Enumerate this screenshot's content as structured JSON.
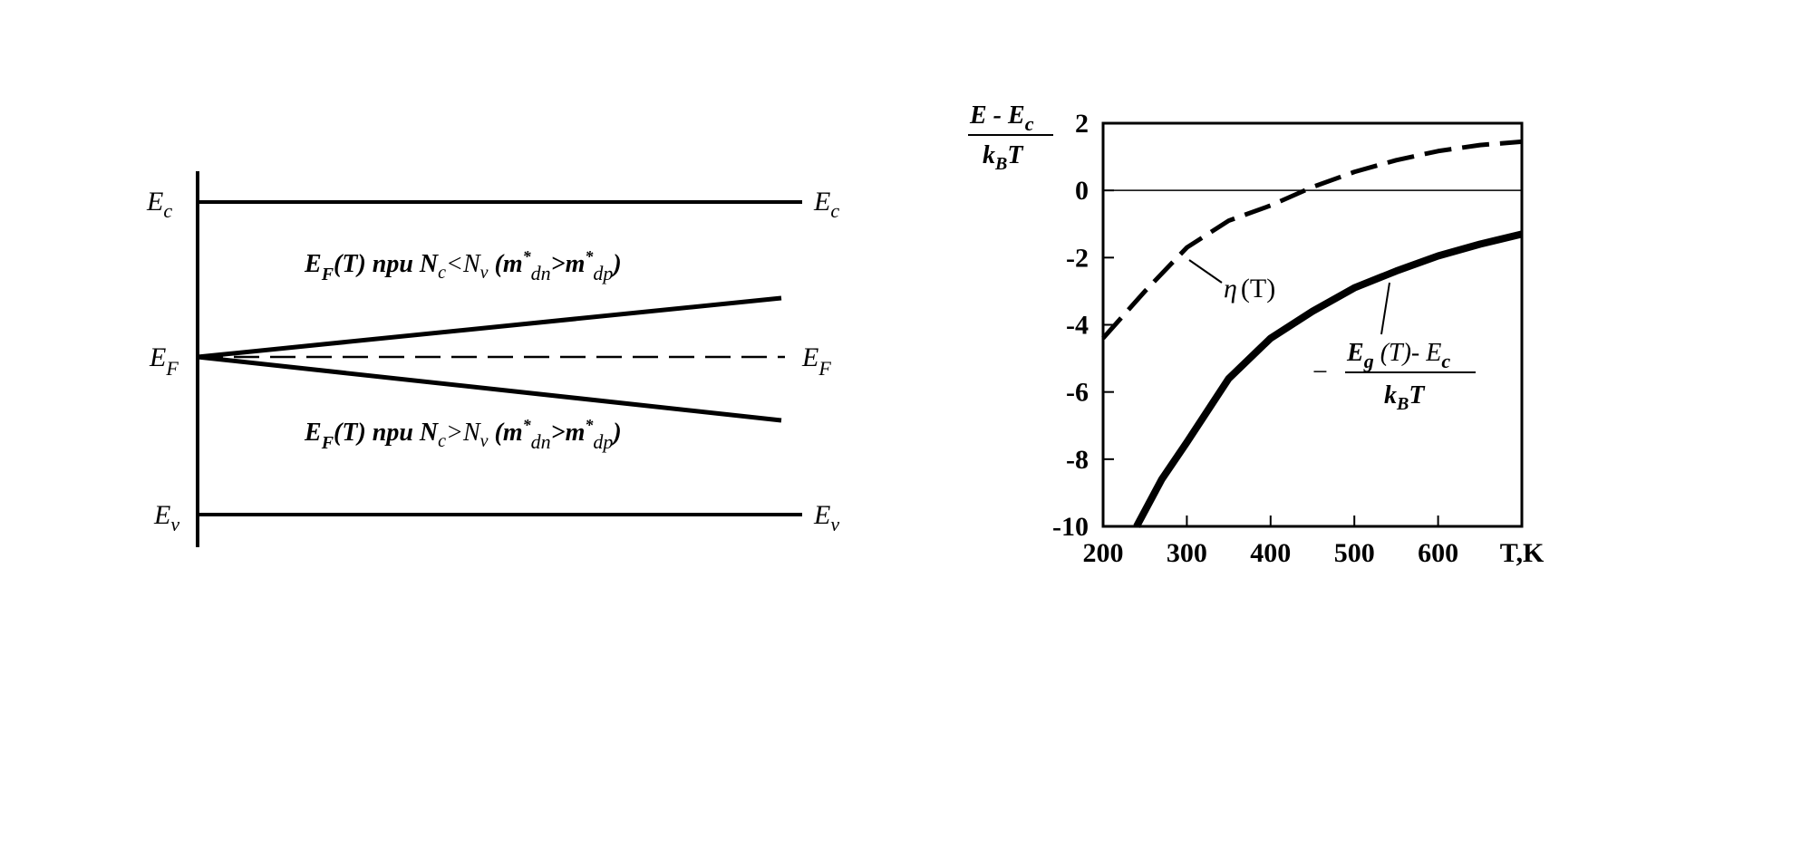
{
  "diagram": {
    "ec_left": [
      "E",
      "c"
    ],
    "ec_right": [
      "E",
      "c"
    ],
    "ef_left": [
      "E",
      "F"
    ],
    "ef_right": [
      "E",
      "F"
    ],
    "ev_left": [
      "E",
      "v"
    ],
    "ev_right": [
      "E",
      "v"
    ],
    "upper_label": [
      "E",
      "F",
      "(T) при N",
      "c",
      "<N",
      "v",
      " (",
      "m",
      "*",
      "dn",
      ">",
      "m",
      "*",
      "dp",
      ")"
    ],
    "lower_label": [
      "E",
      "F",
      "(T) при N",
      "c",
      ">N",
      "v",
      " (",
      "m",
      "*",
      "dn",
      ">",
      "m",
      "*",
      "dp",
      ")"
    ]
  },
  "chart_data": {
    "type": "line",
    "y_label": {
      "numerator": [
        "E - E",
        "c"
      ],
      "denominator": [
        "k",
        "B",
        "T"
      ]
    },
    "x_label": "T,K",
    "xlim": [
      200,
      700
    ],
    "ylim": [
      -10,
      2
    ],
    "xticks": [
      200,
      300,
      400,
      500,
      600
    ],
    "yticks": [
      2,
      0,
      -2,
      -4,
      -6,
      -8,
      -10
    ],
    "zero_line": true,
    "series": [
      {
        "name": [
          "η",
          "(T)"
        ],
        "color": "#000000",
        "dashed": true,
        "x": [
          200,
          250,
          300,
          350,
          400,
          450,
          500,
          550,
          600,
          650,
          700
        ],
        "values": [
          -4.4,
          -3,
          -1.7,
          -0.9,
          -0.45,
          0.1,
          0.55,
          0.9,
          1.17,
          1.35,
          1.45
        ]
      },
      {
        "name": {
          "minus": "−",
          "numerator": [
            "E",
            "g",
            " (T)- E",
            "c"
          ],
          "denominator": [
            "k",
            "B",
            "T"
          ]
        },
        "color": "#000000",
        "dashed": false,
        "x": [
          240,
          270,
          300,
          350,
          400,
          450,
          500,
          550,
          600,
          650,
          700
        ],
        "values": [
          -10,
          -8.6,
          -7.5,
          -5.6,
          -4.4,
          -3.6,
          -2.9,
          -2.4,
          -1.95,
          -1.6,
          -1.3
        ]
      }
    ]
  }
}
